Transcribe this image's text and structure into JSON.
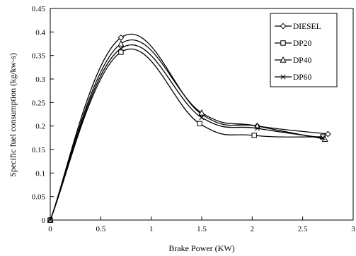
{
  "chart_data": {
    "type": "line",
    "title": "",
    "xlabel": "Brake Power (KW)",
    "ylabel": "Specific fuel consumption (kg/kw-s)",
    "xlim": [
      0,
      3
    ],
    "ylim": [
      0,
      0.45
    ],
    "x_ticks": [
      "0",
      "0.5",
      "1",
      "1.5",
      "2",
      "2.5",
      "3"
    ],
    "y_ticks": [
      "0",
      "0.05",
      "0.1",
      "0.15",
      "0.2",
      "0.25",
      "0.3",
      "0.35",
      "0.4",
      "0.45"
    ],
    "grid": false,
    "legend_position": "top-right",
    "series": [
      {
        "name": "DIESEL",
        "marker": "diamond",
        "x": [
          0,
          0.7,
          1.5,
          2.05,
          2.75
        ],
        "y": [
          0,
          0.388,
          0.225,
          0.2,
          0.183
        ]
      },
      {
        "name": "DP20",
        "marker": "square",
        "x": [
          0,
          0.7,
          1.48,
          2.02,
          2.7
        ],
        "y": [
          0,
          0.357,
          0.205,
          0.18,
          0.177
        ]
      },
      {
        "name": "DP40",
        "marker": "triangle",
        "x": [
          0,
          0.7,
          1.5,
          2.05,
          2.72
        ],
        "y": [
          0,
          0.375,
          0.228,
          0.2,
          0.172
        ]
      },
      {
        "name": "DP60",
        "marker": "x",
        "x": [
          0,
          0.7,
          1.5,
          2.05,
          2.7
        ],
        "y": [
          0,
          0.365,
          0.218,
          0.195,
          0.175
        ]
      }
    ]
  }
}
